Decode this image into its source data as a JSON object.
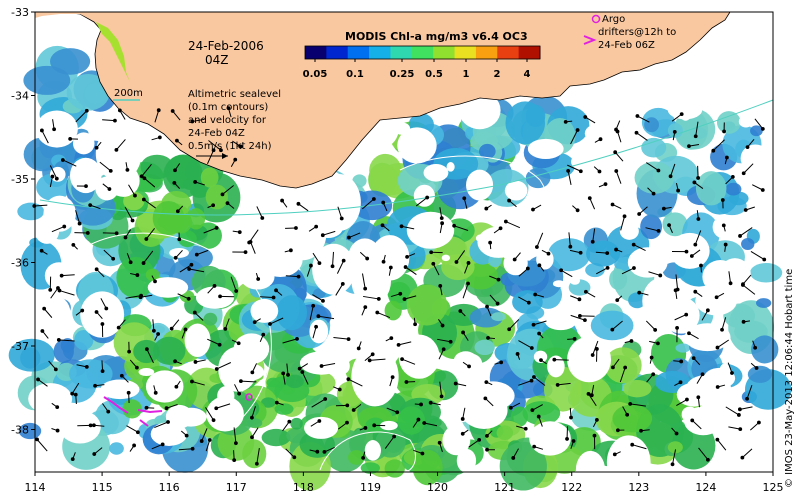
{
  "map": {
    "date": "24-Feb-2006",
    "hour": "04Z",
    "depth_contour_label": "200m",
    "sealevel_note": [
      "Altimetric sealevel",
      "(0.1m contours)",
      "and velocity for",
      "24-Feb 04Z",
      "0.5m/s (1kt 24h)"
    ],
    "colorbar": {
      "title": "MODIS Chl-a mg/m3 v6.4 OC3",
      "ticks": [
        "0.05",
        "0.1",
        "0.25",
        "0.5",
        "1",
        "2",
        "4"
      ],
      "colors": [
        "#08006e",
        "#0026d0",
        "#0070f0",
        "#16b0e8",
        "#30d8b0",
        "#40e060",
        "#90e030",
        "#e8e020",
        "#f8a010",
        "#e84010",
        "#b01000"
      ]
    },
    "drifter_legend": [
      "Argo",
      "drifters@12h to",
      "24-Feb 06Z"
    ],
    "drifter_color": "#e020e0",
    "copyright": "© IMOS 23-May-2013 12:06:44 Hobart time",
    "land_color": "#fac8a0",
    "ocean_color": "#ffffff",
    "x_ticks": [
      "114",
      "115",
      "116",
      "117",
      "118",
      "119",
      "120",
      "121",
      "122",
      "123",
      "124",
      "125"
    ],
    "y_ticks": [
      "-33",
      "-34",
      "-35",
      "-36",
      "-37",
      "-38"
    ]
  }
}
